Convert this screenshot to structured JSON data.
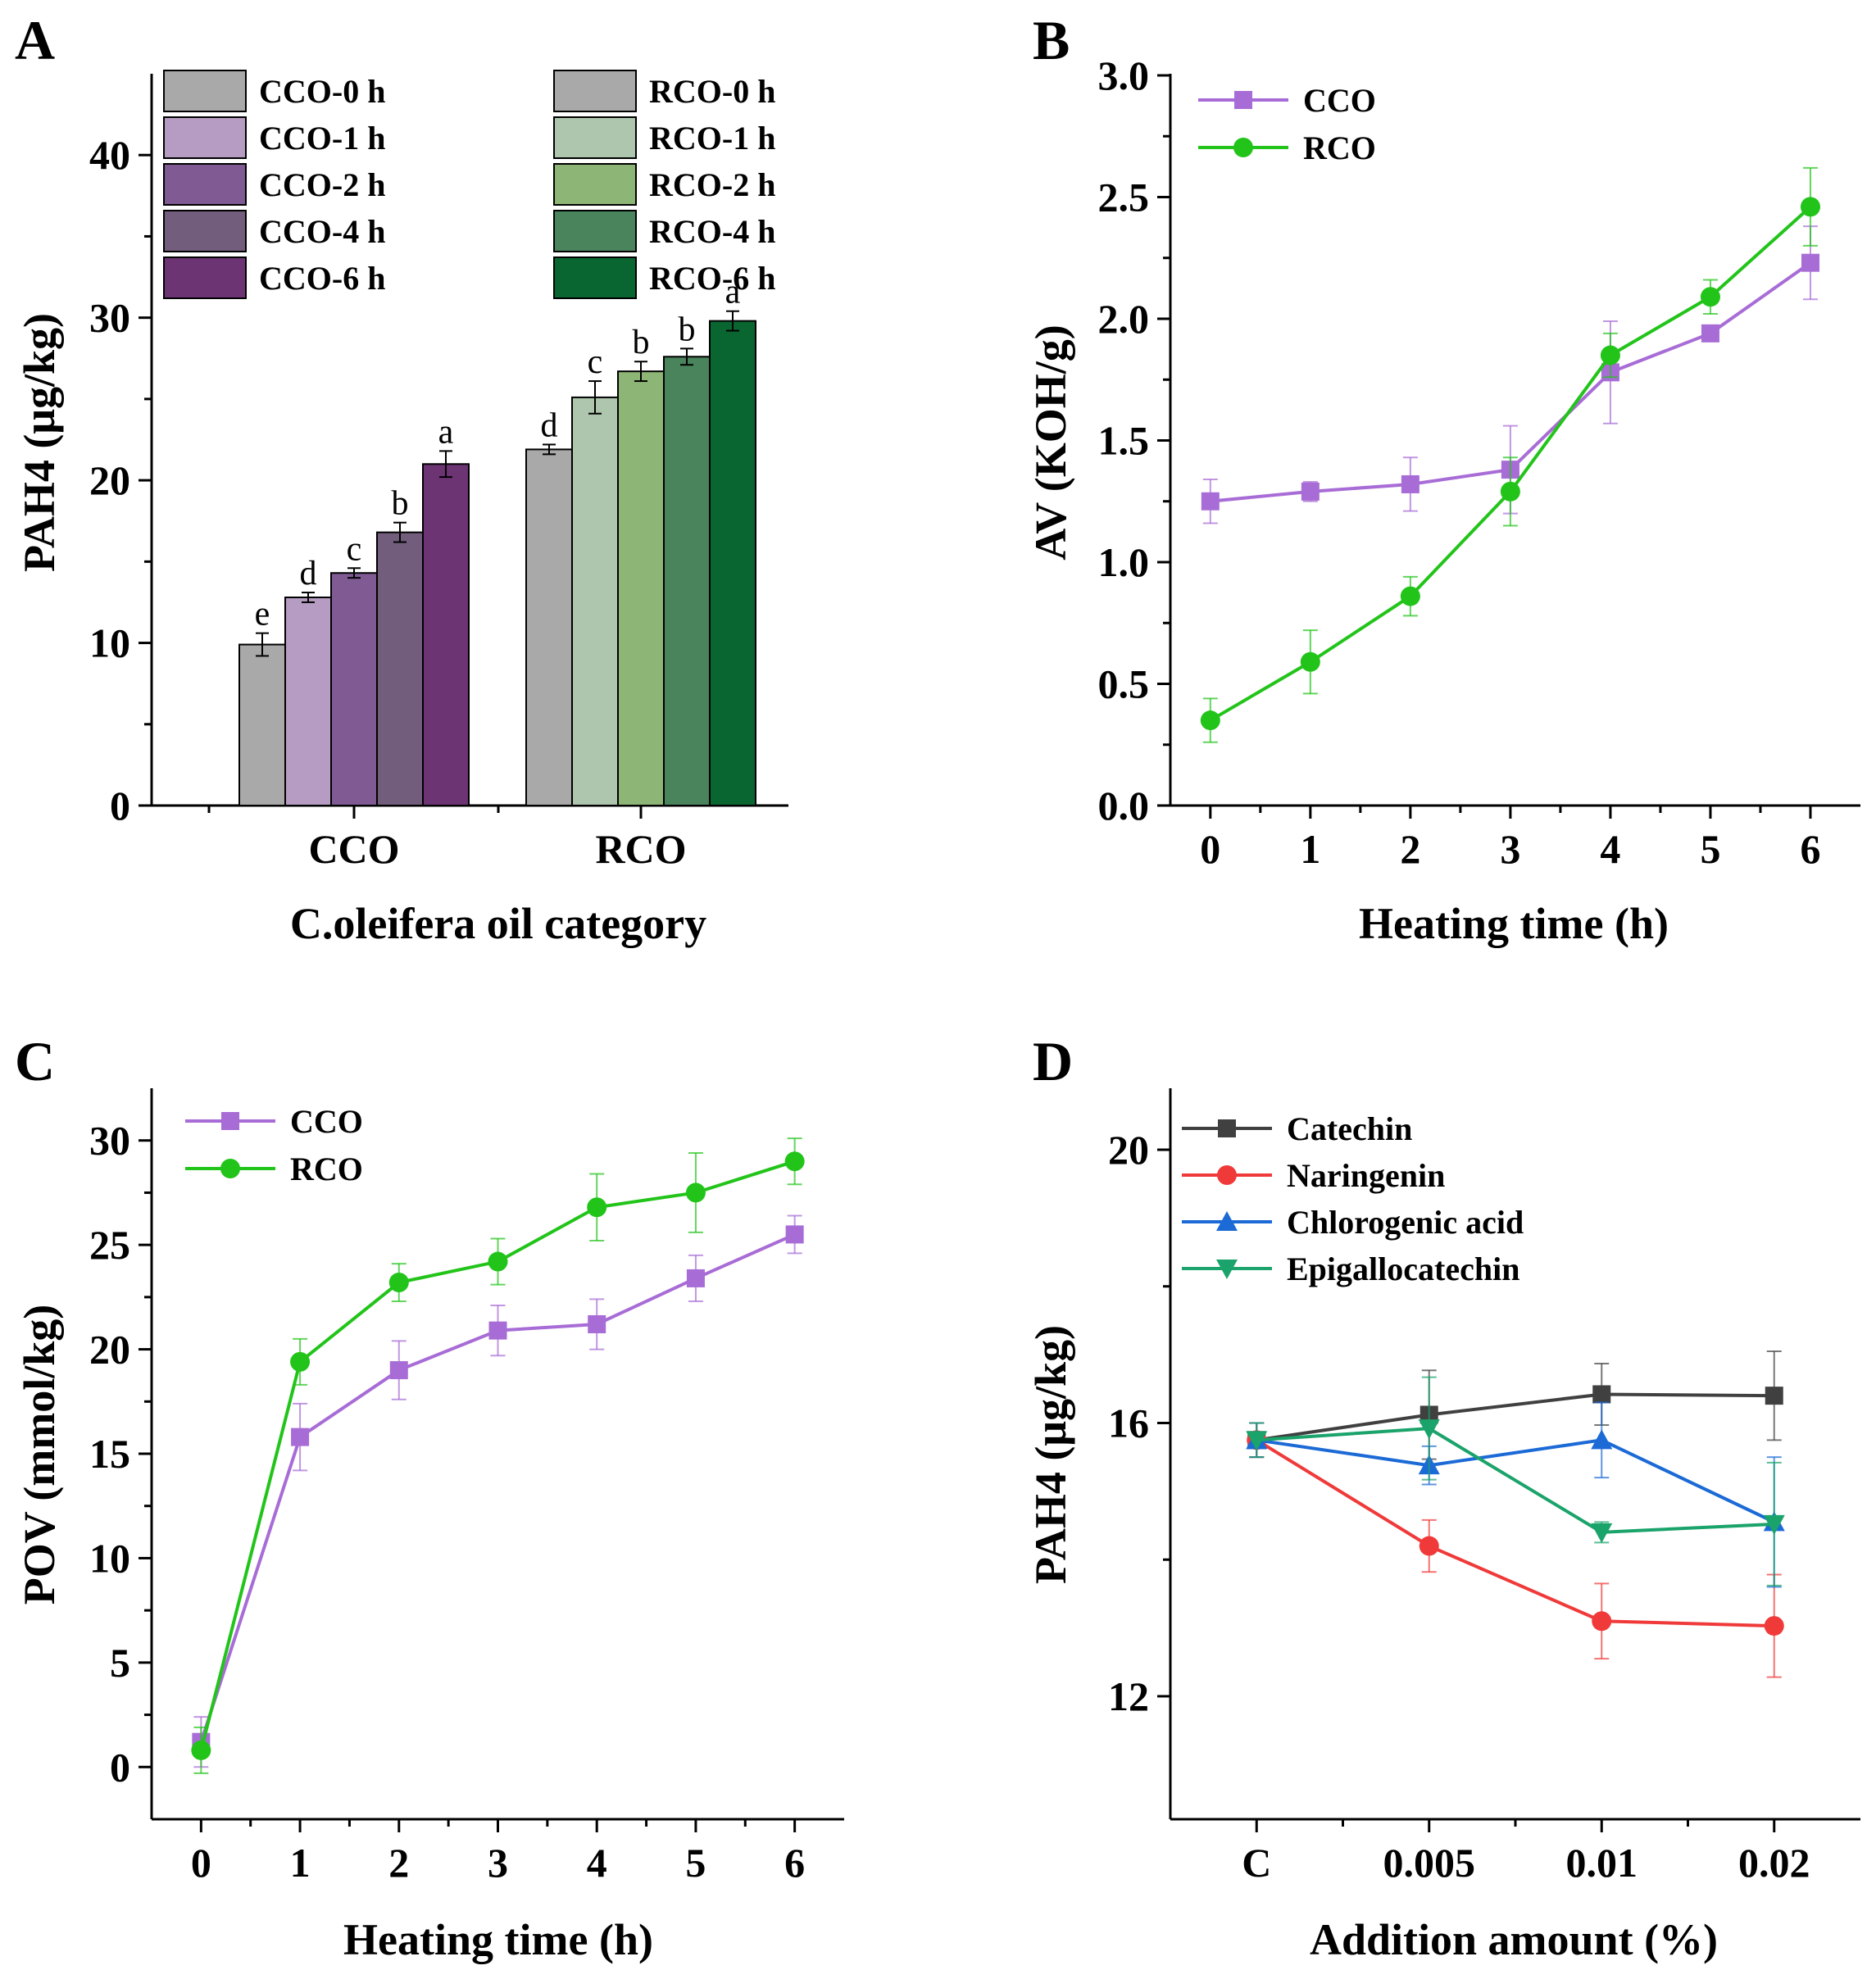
{
  "chart_data": [
    {
      "panel": "A",
      "type": "bar",
      "categories": [
        "CCO",
        "RCO"
      ],
      "xlabel": "C.oleifera oil category",
      "ylabel": "PAH4 (μg/kg)",
      "ylim": [
        0,
        45
      ],
      "yticks": [
        0,
        10,
        20,
        30,
        40
      ],
      "series": [
        {
          "name": "CCO-0 h",
          "color": "#a9a9a9",
          "category": "CCO",
          "value": 9.9,
          "error": 0.7,
          "letter": "e"
        },
        {
          "name": "CCO-1 h",
          "color": "#b69cc2",
          "category": "CCO",
          "value": 12.8,
          "error": 0.3,
          "letter": "d"
        },
        {
          "name": "CCO-2 h",
          "color": "#7f5a93",
          "category": "CCO",
          "value": 14.3,
          "error": 0.3,
          "letter": "c"
        },
        {
          "name": "CCO-4 h",
          "color": "#735d7d",
          "category": "CCO",
          "value": 16.8,
          "error": 0.6,
          "letter": "b"
        },
        {
          "name": "CCO-6 h",
          "color": "#6d3474",
          "category": "CCO",
          "value": 21.0,
          "error": 0.8,
          "letter": "a"
        },
        {
          "name": "RCO-0 h",
          "color": "#a9a9a9",
          "category": "RCO",
          "value": 21.9,
          "error": 0.3,
          "letter": "d"
        },
        {
          "name": "RCO-1 h",
          "color": "#adc6ad",
          "category": "RCO",
          "value": 25.1,
          "error": 1.0,
          "letter": "c"
        },
        {
          "name": "RCO-2 h",
          "color": "#8db676",
          "category": "RCO",
          "value": 26.7,
          "error": 0.6,
          "letter": "b"
        },
        {
          "name": "RCO-4 h",
          "color": "#49845c",
          "category": "RCO",
          "value": 27.6,
          "error": 0.5,
          "letter": "b"
        },
        {
          "name": "RCO-6 h",
          "color": "#0a6630",
          "category": "RCO",
          "value": 29.8,
          "error": 0.6,
          "letter": "a"
        }
      ]
    },
    {
      "panel": "B",
      "type": "line",
      "xlabel": "Heating time (h)",
      "ylabel": "AV (KOH/g)",
      "x": [
        0,
        1,
        2,
        3,
        4,
        5,
        6
      ],
      "xlim": [
        -0.4,
        6.5
      ],
      "ylim": [
        0.0,
        3.0
      ],
      "yticks": [
        0.0,
        0.5,
        1.0,
        1.5,
        2.0,
        2.5,
        3.0
      ],
      "series": [
        {
          "name": "CCO",
          "color": "#a86cd6",
          "marker": "square",
          "values": [
            1.25,
            1.29,
            1.32,
            1.38,
            1.78,
            1.94,
            2.23
          ],
          "errors": [
            0.09,
            0.04,
            0.11,
            0.18,
            0.21,
            0.02,
            0.15
          ]
        },
        {
          "name": "RCO",
          "color": "#22c41a",
          "marker": "circle",
          "values": [
            0.35,
            0.59,
            0.86,
            1.29,
            1.85,
            2.09,
            2.46
          ],
          "errors": [
            0.09,
            0.13,
            0.08,
            0.14,
            0.09,
            0.07,
            0.16
          ]
        }
      ]
    },
    {
      "panel": "C",
      "type": "line",
      "xlabel": "Heating time (h)",
      "ylabel": "POV (mmol/kg)",
      "x": [
        0,
        1,
        2,
        3,
        4,
        5,
        6
      ],
      "xlim": [
        -0.5,
        6.5
      ],
      "ylim": [
        -2.5,
        32.5
      ],
      "yticks": [
        0,
        5,
        10,
        15,
        20,
        25,
        30
      ],
      "series": [
        {
          "name": "CCO",
          "color": "#a86cd6",
          "marker": "square",
          "values": [
            1.2,
            15.8,
            19.0,
            20.9,
            21.2,
            23.4,
            25.5
          ],
          "errors": [
            1.2,
            1.6,
            1.4,
            1.2,
            1.2,
            1.1,
            0.9
          ]
        },
        {
          "name": "RCO",
          "color": "#22c41a",
          "marker": "circle",
          "values": [
            0.8,
            19.4,
            23.2,
            24.2,
            26.8,
            27.5,
            29.0
          ],
          "errors": [
            1.1,
            1.1,
            0.9,
            1.1,
            1.6,
            1.9,
            1.1
          ]
        }
      ]
    },
    {
      "panel": "D",
      "type": "line",
      "xlabel": "Addition amount (%)",
      "ylabel": "PAH4 (μg/kg)",
      "categories": [
        "C",
        "0.005",
        "0.01",
        "0.02"
      ],
      "xlim": [
        -0.5,
        3.5
      ],
      "ylim": [
        10.2,
        20.9
      ],
      "yticks": [
        12,
        16,
        20
      ],
      "series": [
        {
          "name": "Catechin",
          "color": "#404040",
          "marker": "square",
          "values": [
            15.75,
            16.12,
            16.42,
            16.4
          ],
          "errors": [
            0.25,
            0.65,
            0.45,
            0.65
          ]
        },
        {
          "name": "Naringenin",
          "color": "#f03a3a",
          "marker": "circle",
          "values": [
            15.75,
            14.2,
            13.1,
            13.03
          ],
          "errors": [
            0.25,
            0.38,
            0.55,
            0.75
          ]
        },
        {
          "name": "Chlorogenic acid",
          "color": "#1b6ad6",
          "marker": "triangle-up",
          "values": [
            15.75,
            15.38,
            15.75,
            14.55
          ],
          "errors": [
            0.25,
            0.28,
            0.55,
            0.95
          ]
        },
        {
          "name": "Epigallocatechin",
          "color": "#1aa36a",
          "marker": "triangle-down",
          "values": [
            15.75,
            15.92,
            14.4,
            14.52
          ],
          "errors": [
            0.25,
            0.75,
            0.15,
            0.9
          ]
        }
      ]
    }
  ]
}
